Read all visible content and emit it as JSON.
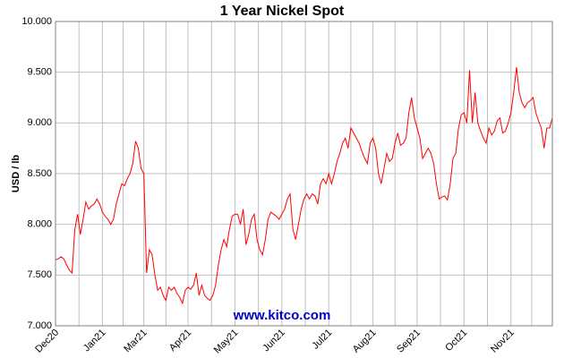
{
  "chart_data": {
    "type": "line",
    "title": "1 Year Nickel Spot",
    "y_label": "USD / lb",
    "annotation": "www.kitco.com",
    "categories": [
      "Dec20",
      null,
      null,
      null,
      null,
      null,
      null,
      null,
      null,
      null,
      null,
      null,
      null,
      null,
      null,
      null,
      null,
      "Jan21",
      null,
      null,
      null,
      null,
      null,
      null,
      null,
      null,
      null,
      null,
      null,
      null,
      null,
      null,
      "Mar21",
      null,
      null,
      null,
      null,
      null,
      null,
      null,
      null,
      null,
      null,
      null,
      null,
      null,
      null,
      null,
      "Apr21",
      null,
      null,
      null,
      null,
      null,
      null,
      null,
      null,
      null,
      null,
      null,
      null,
      null,
      null,
      null,
      null,
      "May21",
      null,
      null,
      null,
      null,
      null,
      null,
      null,
      null,
      null,
      null,
      null,
      null,
      null,
      null,
      null,
      null,
      "Jun21",
      null,
      null,
      null,
      null,
      null,
      null,
      null,
      null,
      null,
      null,
      null,
      null,
      null,
      null,
      null,
      null,
      "Jul21",
      null,
      null,
      null,
      null,
      null,
      null,
      null,
      null,
      null,
      null,
      null,
      null,
      null,
      null,
      null,
      "Aug21",
      null,
      null,
      null,
      null,
      null,
      null,
      null,
      null,
      null,
      null,
      null,
      null,
      null,
      null,
      null,
      "Sep21",
      null,
      null,
      null,
      null,
      null,
      null,
      null,
      null,
      null,
      null,
      null,
      null,
      null,
      null,
      null,
      null,
      "Oct21",
      null,
      null,
      null,
      null,
      null,
      null,
      null,
      null,
      null,
      null,
      null,
      null,
      null,
      null,
      null,
      null,
      "Nov21",
      null,
      null,
      null,
      null,
      null,
      null,
      null,
      null,
      null,
      null,
      null,
      null,
      null,
      null,
      null
    ],
    "series": [
      {
        "name": "Nickel",
        "color": "#ff0000",
        "values": [
          7.65,
          7.66,
          7.68,
          7.66,
          7.6,
          7.55,
          7.52,
          7.95,
          8.1,
          7.9,
          8.05,
          8.22,
          8.15,
          8.18,
          8.2,
          8.25,
          8.2,
          8.12,
          8.08,
          8.05,
          8.0,
          8.05,
          8.2,
          8.3,
          8.4,
          8.38,
          8.45,
          8.5,
          8.6,
          8.82,
          8.75,
          8.55,
          8.5,
          7.52,
          7.75,
          7.7,
          7.5,
          7.35,
          7.38,
          7.3,
          7.25,
          7.38,
          7.35,
          7.38,
          7.32,
          7.28,
          7.22,
          7.35,
          7.38,
          7.36,
          7.4,
          7.52,
          7.3,
          7.4,
          7.3,
          7.27,
          7.25,
          7.3,
          7.4,
          7.6,
          7.75,
          7.85,
          7.78,
          7.95,
          8.08,
          8.1,
          8.1,
          8.0,
          8.15,
          7.8,
          7.9,
          8.05,
          8.1,
          7.85,
          7.75,
          7.7,
          7.85,
          8.05,
          8.12,
          8.1,
          8.08,
          8.05,
          8.1,
          8.15,
          8.25,
          8.3,
          7.95,
          7.85,
          8.0,
          8.15,
          8.25,
          8.3,
          8.25,
          8.3,
          8.28,
          8.2,
          8.4,
          8.45,
          8.4,
          8.5,
          8.4,
          8.5,
          8.62,
          8.7,
          8.8,
          8.85,
          8.75,
          8.95,
          8.9,
          8.85,
          8.8,
          8.72,
          8.65,
          8.6,
          8.8,
          8.85,
          8.75,
          8.5,
          8.4,
          8.55,
          8.7,
          8.62,
          8.65,
          8.8,
          8.9,
          8.78,
          8.8,
          8.85,
          9.1,
          9.25,
          9.05,
          8.95,
          8.85,
          8.65,
          8.7,
          8.75,
          8.7,
          8.6,
          8.4,
          8.25,
          8.27,
          8.28,
          8.24,
          8.4,
          8.65,
          8.7,
          8.95,
          9.08,
          9.1,
          9.0,
          9.52,
          9.0,
          9.3,
          9.0,
          8.92,
          8.85,
          8.8,
          8.95,
          8.88,
          8.92,
          9.02,
          9.05,
          8.9,
          8.92,
          9.0,
          9.1,
          9.3,
          9.55,
          9.3,
          9.2,
          9.15,
          9.2,
          9.22,
          9.25,
          9.1,
          9.02,
          8.95,
          8.75,
          8.95,
          8.95,
          9.05
        ]
      }
    ],
    "ylim": [
      7,
      10
    ],
    "yticks": [
      {
        "value": 7,
        "label": "7.000"
      },
      {
        "value": 7.5,
        "label": "7.500"
      },
      {
        "value": 8,
        "label": "8.000"
      },
      {
        "value": 8.5,
        "label": "8.500"
      },
      {
        "value": 9,
        "label": "9.000"
      },
      {
        "value": 9.5,
        "label": "9.500"
      },
      {
        "value": 10,
        "label": "10.000"
      }
    ],
    "grid": true
  }
}
